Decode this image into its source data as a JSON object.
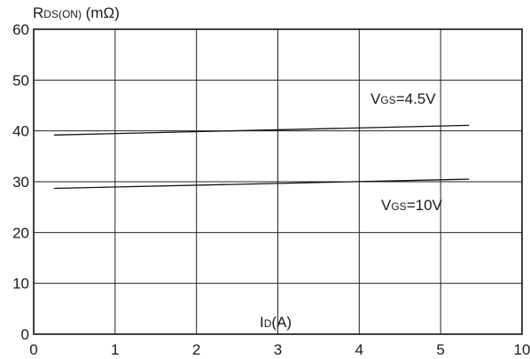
{
  "chart_data": {
    "type": "line",
    "y_axis_label": {
      "main": "R",
      "sub": "DS(ON)",
      "unit": " (mΩ)"
    },
    "x_axis_label": {
      "main": "I",
      "sub": "D",
      "unit": "(A)"
    },
    "xlim": [
      0,
      6
    ],
    "ylim": [
      0,
      60
    ],
    "x_ticks": [
      "0",
      "1",
      "2",
      "3",
      "4",
      "5",
      "10"
    ],
    "y_ticks": [
      "0",
      "10",
      "20",
      "30",
      "40",
      "50",
      "60"
    ],
    "grid": true,
    "series": [
      {
        "name_main": "V",
        "name_sub": "GS",
        "name_val": "=4.5V",
        "x": [
          0.25,
          5.35
        ],
        "y": [
          39.2,
          41.1
        ]
      },
      {
        "name_main": "V",
        "name_sub": "GS",
        "name_val": "=10V",
        "x": [
          0.25,
          5.35
        ],
        "y": [
          28.7,
          30.5
        ]
      }
    ]
  }
}
